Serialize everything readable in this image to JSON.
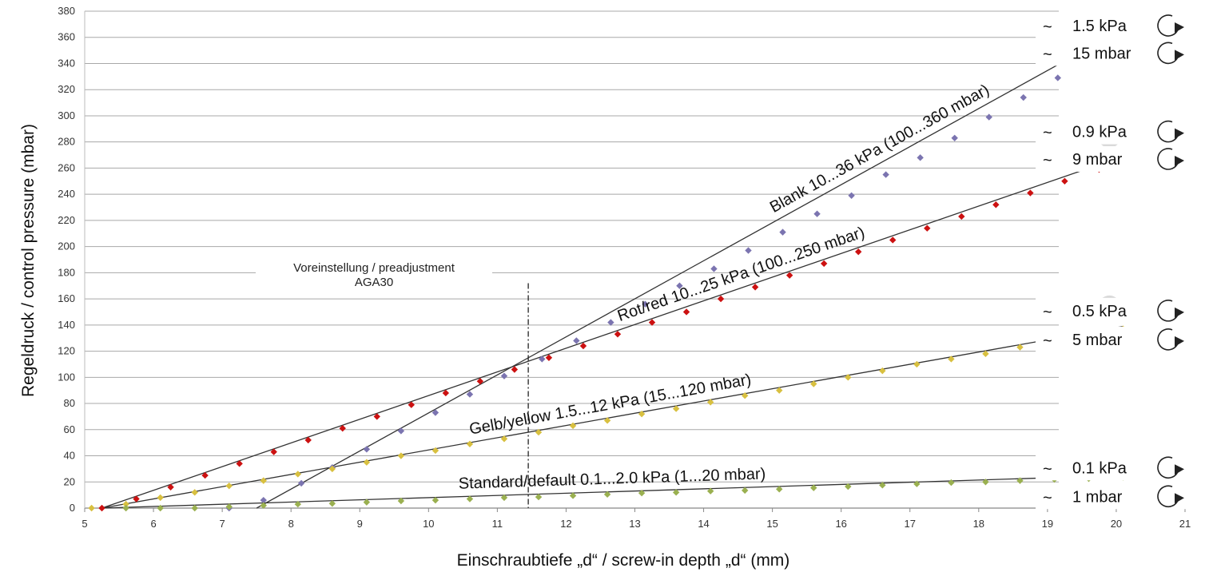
{
  "chart_data": {
    "type": "scatter",
    "xlabel": "Einschraubtiefe „d“ / screw-in depth „d“ (mm)",
    "ylabel": "Regeldruck / control pressure (mbar)",
    "xlim": [
      5,
      21
    ],
    "ylim": [
      0,
      380
    ],
    "x_ticks": [
      "5",
      "6",
      "7",
      "8",
      "9",
      "10",
      "11",
      "12",
      "13",
      "14",
      "15",
      "16",
      "17",
      "18",
      "19",
      "20",
      "21"
    ],
    "y_ticks": [
      "0",
      "20",
      "40",
      "60",
      "80",
      "100",
      "120",
      "140",
      "160",
      "180",
      "200",
      "220",
      "240",
      "260",
      "280",
      "300",
      "320",
      "340",
      "360",
      "380"
    ],
    "grid": true,
    "series": [
      {
        "name": "Blank 10...36 kPa (100...360 mbar)",
        "color": "#7b74b0",
        "x": [
          7.1,
          7.6,
          8.15,
          8.6,
          9.1,
          9.6,
          10.1,
          10.6,
          11.1,
          11.65,
          12.15,
          12.65,
          13.15,
          13.65,
          14.15,
          14.65,
          15.15,
          15.65,
          16.15,
          16.65,
          17.15,
          17.65,
          18.15,
          18.65,
          19.15,
          19.65
        ],
        "y": [
          0,
          6,
          19,
          31,
          45,
          59,
          73,
          87,
          101,
          114,
          128,
          142,
          156,
          170,
          183,
          197,
          211,
          225,
          239,
          255,
          268,
          283,
          299,
          314,
          329,
          345
        ],
        "fit": [
          [
            7.5,
            0
          ],
          [
            19.7,
            355
          ]
        ]
      },
      {
        "name": "Rot/red 10...25 kPa (100...250 mbar)",
        "color": "#cc1111",
        "x": [
          5.25,
          5.75,
          6.25,
          6.75,
          7.25,
          7.75,
          8.25,
          8.75,
          9.25,
          9.75,
          10.25,
          10.75,
          11.25,
          11.75,
          12.25,
          12.75,
          13.25,
          13.75,
          14.25,
          14.75,
          15.25,
          15.75,
          16.25,
          16.75,
          17.25,
          17.75,
          18.25,
          18.75,
          19.25,
          19.75,
          20.25
        ],
        "y": [
          0,
          7,
          16,
          25,
          34,
          43,
          52,
          61,
          70,
          79,
          88,
          97,
          106,
          115,
          124,
          133,
          142,
          150,
          160,
          169,
          178,
          187,
          196,
          205,
          214,
          223,
          232,
          241,
          250,
          259,
          266
        ],
        "fit": [
          [
            5.25,
            0
          ],
          [
            20.1,
            269
          ]
        ]
      },
      {
        "name": "Gelb/yellow 1.5...12 kPa (15...120 mbar)",
        "color": "#d8c040",
        "x": [
          5.1,
          5.6,
          6.1,
          6.6,
          7.1,
          7.6,
          8.1,
          8.6,
          9.1,
          9.6,
          10.1,
          10.6,
          11.1,
          11.6,
          12.1,
          12.6,
          13.1,
          13.6,
          14.1,
          14.6,
          15.1,
          15.6,
          16.1,
          16.6,
          17.1,
          17.6,
          18.1,
          18.6,
          19.1,
          19.6,
          20.1
        ],
        "y": [
          0,
          3,
          8,
          12,
          17,
          21,
          26,
          30,
          35,
          40,
          44,
          49,
          53,
          58,
          63,
          67,
          72,
          76,
          81,
          86,
          90,
          95,
          100,
          105,
          110,
          114,
          118,
          123,
          128,
          132,
          137
        ],
        "fit": [
          [
            5.25,
            0
          ],
          [
            20.1,
            139
          ]
        ]
      },
      {
        "name": "Standard/default 0.1...2.0 kPa (1...20 mbar)",
        "color": "#9ab050",
        "x": [
          5.6,
          6.1,
          6.6,
          7.1,
          7.6,
          8.1,
          8.6,
          9.1,
          9.6,
          10.1,
          10.6,
          11.1,
          11.6,
          12.1,
          12.6,
          13.1,
          13.6,
          14.1,
          14.6,
          15.1,
          15.6,
          16.1,
          16.6,
          17.1,
          17.6,
          18.1,
          18.6,
          19.1,
          19.6,
          20.1
        ],
        "y": [
          0,
          0,
          0,
          1,
          2,
          3,
          3.5,
          4.5,
          5.5,
          6,
          7,
          8,
          8.5,
          9.5,
          10.5,
          11.5,
          12,
          13,
          13.5,
          14.5,
          15.5,
          16.5,
          17.5,
          18.5,
          19.5,
          20,
          21,
          22,
          22.5,
          23.5
        ],
        "fit": [
          [
            5.25,
            0
          ],
          [
            20.1,
            25
          ]
        ]
      }
    ],
    "annotations": {
      "preadjust_line1": "Voreinstellung / preadjustment",
      "preadjust_line2": "AGA30",
      "preadjust_x": 11.45
    }
  },
  "badges": [
    {
      "label": "1",
      "x": 19.9,
      "y": 154
    },
    {
      "label": "2",
      "x": 19.9,
      "y": 284
    },
    {
      "label": "3",
      "x": 19.9,
      "y": 369
    }
  ],
  "side_labels": [
    {
      "tilde": "~",
      "text": "1.5 kPa",
      "at_y": 369
    },
    {
      "tilde": "~",
      "text": "15 mbar",
      "at_y": 348
    },
    {
      "tilde": "~",
      "text": "0.9 kPa",
      "at_y": 288
    },
    {
      "tilde": "~",
      "text": "9 mbar",
      "at_y": 267
    },
    {
      "tilde": "~",
      "text": "0.5 kPa",
      "at_y": 151
    },
    {
      "tilde": "~",
      "text": "5 mbar",
      "at_y": 129
    },
    {
      "tilde": "~",
      "text": "0.1 kPa",
      "at_y": 31
    },
    {
      "tilde": "~",
      "text": "1 mbar",
      "at_y": 9
    }
  ]
}
